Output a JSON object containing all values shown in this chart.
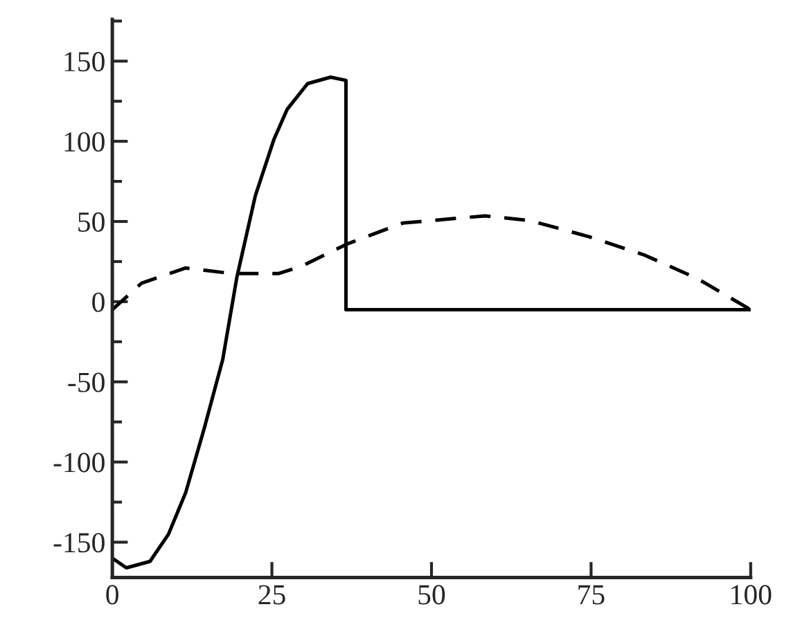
{
  "chart_data": {
    "type": "line",
    "xlim": [
      0,
      100
    ],
    "xticks": [
      0,
      25,
      50,
      75,
      100
    ],
    "ylim": [
      -172,
      176
    ],
    "yticks": [
      -150,
      -100,
      -50,
      0,
      50,
      100,
      150
    ],
    "grid": false,
    "legend": false,
    "marker": "none",
    "series": [
      {
        "color": "#000000",
        "line_style": "solid",
        "x": [
          0,
          2.2,
          5.9,
          8.8,
          11.5,
          14.4,
          17.3,
          19.5,
          22.4,
          25.3,
          27.4,
          30.6,
          34.2,
          36.6,
          36.6,
          100
        ],
        "values": [
          -160,
          -166,
          -162,
          -145,
          -119,
          -79,
          -36,
          15,
          66,
          101,
          120,
          136,
          140,
          138,
          -5,
          -5
        ]
      },
      {
        "color": "#000000",
        "line_style": "dashed",
        "x": [
          0,
          4.6,
          11.5,
          18.8,
          26,
          29.6,
          36.8,
          45.5,
          58.4,
          65.4,
          74.7,
          83.4,
          91.6,
          100
        ],
        "values": [
          -5,
          11.6,
          21,
          17.5,
          17.5,
          22,
          36,
          49,
          53.5,
          50.6,
          40.5,
          29,
          14.5,
          -5
        ]
      }
    ]
  }
}
